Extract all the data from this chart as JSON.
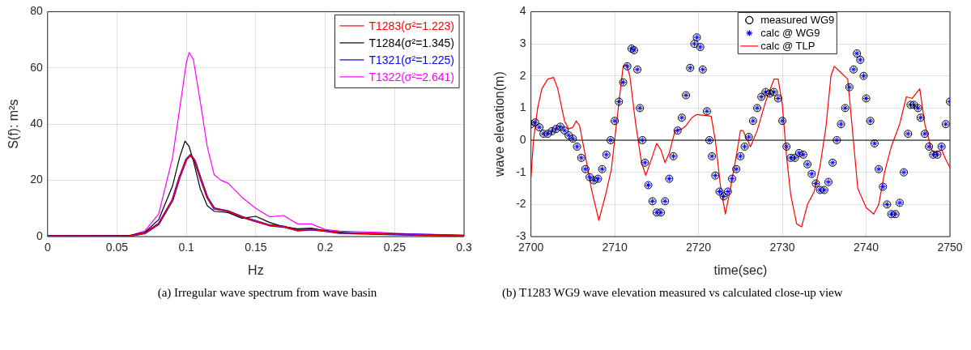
{
  "chart_data": [
    {
      "type": "line",
      "xlabel": "Hz",
      "ylabel": "S(f): m²s",
      "xlim": [
        0,
        0.3
      ],
      "xticks": [
        0,
        0.05,
        0.1,
        0.15,
        0.2,
        0.25,
        0.3
      ],
      "ylim": [
        0,
        80
      ],
      "yticks": [
        0,
        20,
        40,
        60,
        80
      ],
      "grid": true,
      "legend": "top right",
      "line_style": "solid",
      "marker": "none",
      "annotations": [
        "(a)  Irregular wave spectrum from wave basin"
      ],
      "series": [
        {
          "name": "T1283(σ²=1.223)",
          "color": "#ff0000",
          "x": [
            0,
            0.06,
            0.07,
            0.08,
            0.09,
            0.095,
            0.1,
            0.103,
            0.106,
            0.11,
            0.115,
            0.12,
            0.13,
            0.14,
            0.15,
            0.16,
            0.17,
            0.18,
            0.19,
            0.2,
            0.21,
            0.25,
            0.3
          ],
          "values": [
            0.2,
            0.3,
            1.2,
            4.5,
            13,
            21,
            27.5,
            29,
            27,
            21,
            14,
            10,
            9,
            7,
            5.5,
            4,
            3.5,
            2.2,
            2.5,
            2,
            1.3,
            0.8,
            0.3
          ]
        },
        {
          "name": "T1284(σ²=1.345)",
          "color": "#000000",
          "x": [
            0,
            0.05,
            0.06,
            0.07,
            0.08,
            0.09,
            0.095,
            0.099,
            0.102,
            0.105,
            0.11,
            0.115,
            0.12,
            0.13,
            0.14,
            0.15,
            0.16,
            0.17,
            0.18,
            0.19,
            0.2,
            0.22,
            0.25,
            0.3
          ],
          "values": [
            0.2,
            0.2,
            0.4,
            1.5,
            6,
            18,
            28,
            34,
            32,
            27,
            17,
            11,
            9,
            8.5,
            6.5,
            7.2,
            5,
            3.5,
            2.8,
            3,
            2,
            1.2,
            0.8,
            0.3
          ]
        },
        {
          "name": "T1321(σ²=1.225)",
          "color": "#0000ff",
          "x": [
            0,
            0.06,
            0.07,
            0.08,
            0.09,
            0.095,
            0.1,
            0.103,
            0.106,
            0.11,
            0.115,
            0.12,
            0.13,
            0.14,
            0.15,
            0.16,
            0.17,
            0.18,
            0.19,
            0.2,
            0.21,
            0.25,
            0.3
          ],
          "values": [
            0.2,
            0.3,
            1.2,
            4.5,
            13,
            21,
            27.5,
            29,
            27,
            21,
            14,
            10,
            9,
            7,
            5.5,
            4,
            3.5,
            2.2,
            2.5,
            2,
            1.3,
            0.8,
            0.3
          ]
        },
        {
          "name": "T1322(σ²=2.641)",
          "color": "#ff00ff",
          "x": [
            0,
            0.05,
            0.06,
            0.07,
            0.08,
            0.09,
            0.095,
            0.1,
            0.102,
            0.105,
            0.11,
            0.115,
            0.12,
            0.125,
            0.13,
            0.14,
            0.15,
            0.16,
            0.17,
            0.18,
            0.19,
            0.2,
            0.21,
            0.22,
            0.24,
            0.25,
            0.27,
            0.3
          ],
          "values": [
            0.2,
            0.2,
            0.5,
            2,
            8,
            28,
            45,
            62,
            65.5,
            63,
            48,
            32,
            22,
            20,
            19,
            14,
            10,
            7,
            7.5,
            4.5,
            4.5,
            2.5,
            2,
            1.8,
            1.5,
            1.2,
            0.8,
            0.5
          ]
        }
      ]
    },
    {
      "type": "scatter",
      "xlabel": "time(sec)",
      "ylabel": "wave elevation(m)",
      "xlim": [
        2700,
        2750
      ],
      "xticks": [
        2700,
        2710,
        2720,
        2730,
        2740,
        2750
      ],
      "ylim": [
        -3,
        4
      ],
      "yticks": [
        -3,
        -2,
        -1,
        0,
        1,
        2,
        3,
        4
      ],
      "grid": true,
      "legend": "top right",
      "annotations": [
        "(b)  T1283 WG9 wave elevation measured vs calculated close-up view"
      ],
      "ref_lines": [
        {
          "axis": "y",
          "value": 0,
          "color": "#000000",
          "line_style": "solid"
        }
      ],
      "series": [
        {
          "name": "measured WG9",
          "type": "scatter",
          "marker": "circle",
          "color": "#000000",
          "x": [
            2700,
            2700.5,
            2701,
            2701.5,
            2702,
            2702.5,
            2703,
            2703.5,
            2704,
            2704.5,
            2705,
            2705.5,
            2706,
            2706.5,
            2707,
            2707.5,
            2708,
            2708.5,
            2709,
            2709.5,
            2710,
            2710.5,
            2711,
            2711.5,
            2712,
            2712.3,
            2712.7,
            2713,
            2713.3,
            2713.6,
            2714,
            2714.5,
            2715,
            2715.5,
            2716,
            2716.5,
            2717,
            2717.5,
            2718,
            2718.5,
            2719,
            2719.5,
            2719.8,
            2720.2,
            2720.5,
            2721,
            2721.3,
            2721.6,
            2722,
            2722.5,
            2723,
            2723.5,
            2724,
            2724.5,
            2725,
            2725.5,
            2726,
            2726.5,
            2727,
            2727.5,
            2728,
            2728.5,
            2729,
            2729.5,
            2730,
            2730.5,
            2731,
            2731.5,
            2732,
            2732.5,
            2733,
            2733.5,
            2734,
            2734.5,
            2735,
            2735.5,
            2736,
            2736.5,
            2737,
            2737.5,
            2738,
            2738.5,
            2738.9,
            2739.3,
            2739.7,
            2740,
            2740.5,
            2741,
            2741.5,
            2742,
            2742.5,
            2743,
            2743.5,
            2744,
            2744.5,
            2745,
            2745.3,
            2745.7,
            2746.2,
            2746.5,
            2747,
            2747.5,
            2748,
            2748.5,
            2749,
            2749.5,
            2750
          ],
          "values": [
            0.5,
            0.55,
            0.4,
            0.2,
            0.2,
            0.28,
            0.35,
            0.42,
            0.3,
            0.15,
            0.05,
            -0.2,
            -0.55,
            -0.9,
            -1.15,
            -1.25,
            -1.2,
            -0.9,
            -0.45,
            0,
            0.6,
            1.2,
            1.8,
            2.3,
            2.85,
            2.8,
            2.2,
            1,
            0,
            -0.7,
            -1.4,
            -1.9,
            -2.25,
            -2.25,
            -1.9,
            -1.2,
            -0.5,
            0.3,
            0.7,
            1.4,
            2.25,
            3,
            3.2,
            2.9,
            2.2,
            0.9,
            0,
            -0.5,
            -1.1,
            -1.6,
            -1.75,
            -1.6,
            -1.2,
            -0.9,
            -0.5,
            -0.2,
            0.1,
            0.6,
            1,
            1.35,
            1.5,
            1.45,
            1.5,
            1.3,
            0.6,
            -0.2,
            -0.55,
            -0.55,
            -0.4,
            -0.45,
            -0.75,
            -1.05,
            -1.35,
            -1.55,
            -1.55,
            -1.3,
            -0.7,
            0,
            0.5,
            1,
            1.65,
            2.2,
            2.7,
            2.5,
            2,
            1.3,
            0.6,
            -0.1,
            -0.9,
            -1.45,
            -2,
            -2.3,
            -2.3,
            -1.95,
            -1,
            0.2,
            1.1,
            1.1,
            1,
            0.7,
            0.2,
            -0.2,
            -0.45,
            -0.45,
            -0.2,
            0.5,
            1.2
          ]
        },
        {
          "name": "calc @ WG9",
          "type": "scatter",
          "marker": "cross",
          "color": "#0000ff",
          "x": [
            2700,
            2700.5,
            2701,
            2701.5,
            2702,
            2702.5,
            2703,
            2703.5,
            2704,
            2704.5,
            2705,
            2705.5,
            2706,
            2706.5,
            2707,
            2707.5,
            2708,
            2708.5,
            2709,
            2709.5,
            2710,
            2710.5,
            2711,
            2711.5,
            2712,
            2712.3,
            2712.7,
            2713,
            2713.3,
            2713.6,
            2714,
            2714.5,
            2715,
            2715.5,
            2716,
            2716.5,
            2717,
            2717.5,
            2718,
            2718.5,
            2719,
            2719.5,
            2719.8,
            2720.2,
            2720.5,
            2721,
            2721.3,
            2721.6,
            2722,
            2722.5,
            2723,
            2723.5,
            2724,
            2724.5,
            2725,
            2725.5,
            2726,
            2726.5,
            2727,
            2727.5,
            2728,
            2728.5,
            2729,
            2729.5,
            2730,
            2730.5,
            2731,
            2731.5,
            2732,
            2732.5,
            2733,
            2733.5,
            2734,
            2734.5,
            2735,
            2735.5,
            2736,
            2736.5,
            2737,
            2737.5,
            2738,
            2738.5,
            2738.9,
            2739.3,
            2739.7,
            2740,
            2740.5,
            2741,
            2741.5,
            2742,
            2742.5,
            2743,
            2743.5,
            2744,
            2744.5,
            2745,
            2745.3,
            2745.7,
            2746.2,
            2746.5,
            2747,
            2747.5,
            2748,
            2748.5,
            2749,
            2749.5,
            2750
          ],
          "values": [
            0.5,
            0.55,
            0.4,
            0.2,
            0.2,
            0.28,
            0.35,
            0.42,
            0.3,
            0.15,
            0.05,
            -0.2,
            -0.55,
            -0.9,
            -1.15,
            -1.25,
            -1.2,
            -0.9,
            -0.45,
            0,
            0.6,
            1.2,
            1.8,
            2.3,
            2.85,
            2.8,
            2.2,
            1,
            0,
            -0.7,
            -1.4,
            -1.9,
            -2.25,
            -2.25,
            -1.9,
            -1.2,
            -0.5,
            0.3,
            0.7,
            1.4,
            2.25,
            3,
            3.2,
            2.9,
            2.2,
            0.9,
            0,
            -0.5,
            -1.1,
            -1.6,
            -1.75,
            -1.6,
            -1.2,
            -0.9,
            -0.5,
            -0.2,
            0.1,
            0.6,
            1,
            1.35,
            1.5,
            1.45,
            1.5,
            1.3,
            0.6,
            -0.2,
            -0.55,
            -0.55,
            -0.4,
            -0.45,
            -0.75,
            -1.05,
            -1.35,
            -1.55,
            -1.55,
            -1.3,
            -0.7,
            0,
            0.5,
            1,
            1.65,
            2.2,
            2.7,
            2.5,
            2,
            1.3,
            0.6,
            -0.1,
            -0.9,
            -1.45,
            -2,
            -2.3,
            -2.3,
            -1.95,
            -1,
            0.2,
            1.1,
            1.1,
            1,
            0.7,
            0.2,
            -0.2,
            -0.45,
            -0.45,
            -0.2,
            0.5,
            1.2
          ]
        },
        {
          "name": "calc @ TLP",
          "type": "line",
          "marker": "none",
          "line_style": "solid",
          "color": "#ff0000",
          "x": [
            2700,
            2700.3,
            2700.8,
            2701.3,
            2702,
            2702.7,
            2703.2,
            2704,
            2704.5,
            2705,
            2705.4,
            2705.8,
            2706.5,
            2707.2,
            2708.1,
            2709,
            2709.6,
            2710.2,
            2711,
            2711.4,
            2711.8,
            2712.5,
            2713.2,
            2713.7,
            2714.5,
            2715,
            2715.5,
            2716,
            2716.5,
            2717.2,
            2718,
            2718.5,
            2719.2,
            2719.8,
            2721.5,
            2722,
            2722.6,
            2723.2,
            2723.8,
            2724.5,
            2725,
            2725.3,
            2726.2,
            2727,
            2728,
            2729,
            2729.5,
            2730,
            2730.5,
            2731,
            2731.7,
            2732.3,
            2733,
            2733.8,
            2734.5,
            2735.2,
            2735.8,
            2736.2,
            2737,
            2737.8,
            2738.3,
            2739,
            2740,
            2740.9,
            2741.5,
            2742.2,
            2743,
            2744,
            2744.8,
            2745.5,
            2746.4,
            2747,
            2747.8,
            2748.2,
            2749,
            2749.5,
            2750
          ],
          "values": [
            -1.15,
            0,
            1,
            1.6,
            1.9,
            1.95,
            1.6,
            0.6,
            0.35,
            0.4,
            0.6,
            0.45,
            -0.5,
            -1.5,
            -2.5,
            -1.6,
            -0.9,
            0.5,
            2.3,
            2.35,
            2,
            0.5,
            -0.7,
            -1.1,
            -0.5,
            -0.1,
            -0.3,
            -0.7,
            -0.4,
            0.3,
            0.35,
            0.45,
            0.7,
            0.8,
            0.75,
            0,
            -1.4,
            -2.3,
            -1.5,
            -0.5,
            0.3,
            0.3,
            -0.2,
            0.3,
            1.2,
            1.9,
            1.9,
            1.1,
            -0.5,
            -1.7,
            -2.6,
            -2.7,
            -2,
            -1.6,
            -0.8,
            0.4,
            2,
            2.3,
            2.1,
            1.9,
            0.5,
            -1.5,
            -2.1,
            -2.3,
            -2,
            -1,
            -0.2,
            0.5,
            1.35,
            1.3,
            1.6,
            0.5,
            -0.3,
            -0.4,
            -0.3,
            -0.6,
            -0.85
          ]
        }
      ]
    }
  ]
}
